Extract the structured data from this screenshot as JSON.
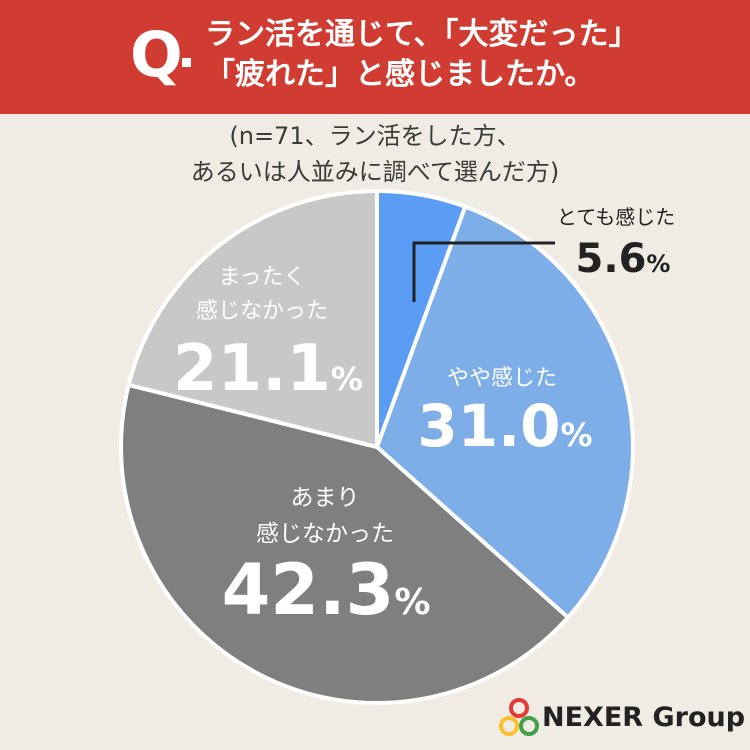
{
  "header": {
    "q_mark": "Q",
    "question_line1": "ラン活を通じて、「大変だった」",
    "question_line2": "「疲れた」と感じましたか。"
  },
  "subtitle": {
    "line1": "(n=71、ラン活をした方、",
    "line2": "あるいは人並みに調べて選んだ方)"
  },
  "chart_data": {
    "type": "pie",
    "start_angle_deg": 0,
    "direction": "clockwise",
    "unit": "%",
    "slices": [
      {
        "label": [
          "とても感じた"
        ],
        "value": 5.6,
        "value_text": "5.6",
        "color": "#5b9cf5"
      },
      {
        "label": [
          "やや感じた"
        ],
        "value": 31.0,
        "value_text": "31.0",
        "color": "#7eaee8"
      },
      {
        "label": [
          "あまり",
          "感じなかった"
        ],
        "value": 42.3,
        "value_text": "42.3",
        "color": "#7f7f7f"
      },
      {
        "label": [
          "まったく",
          "感じなかった"
        ],
        "value": 21.1,
        "value_text": "21.1",
        "color": "#c8c8c8"
      }
    ]
  },
  "brand": {
    "name": "NEXER Group"
  }
}
